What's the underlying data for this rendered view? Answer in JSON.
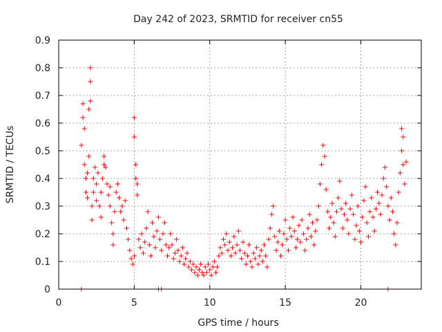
{
  "chart_data": {
    "type": "scatter",
    "title": "Day 242 of 2023, SRMTID for receiver cn55",
    "xlabel": "GPS time / hours",
    "ylabel": "SRMTID / TECUs",
    "xlim": [
      0,
      24
    ],
    "ylim": [
      0,
      0.9
    ],
    "xticks": [
      0,
      5,
      10,
      15,
      20
    ],
    "yticks": [
      0,
      0.1,
      0.2,
      0.3,
      0.4,
      0.5,
      0.6,
      0.7,
      0.8,
      0.9
    ],
    "grid": true,
    "marker": "+",
    "color": "#ff0000",
    "series": [
      {
        "name": "SRMTID",
        "points": [
          [
            1.5,
            0.52
          ],
          [
            1.6,
            0.62
          ],
          [
            1.6,
            0.67
          ],
          [
            1.7,
            0.58
          ],
          [
            1.7,
            0.45
          ],
          [
            1.8,
            0.4
          ],
          [
            1.8,
            0.35
          ],
          [
            1.9,
            0.33
          ],
          [
            1.9,
            0.42
          ],
          [
            2.0,
            0.48
          ],
          [
            2.0,
            0.65
          ],
          [
            2.1,
            0.8
          ],
          [
            2.1,
            0.75
          ],
          [
            2.1,
            0.68
          ],
          [
            2.2,
            0.3
          ],
          [
            2.2,
            0.25
          ],
          [
            2.3,
            0.35
          ],
          [
            2.3,
            0.4
          ],
          [
            2.4,
            0.44
          ],
          [
            2.5,
            0.38
          ],
          [
            2.5,
            0.32
          ],
          [
            2.6,
            0.42
          ],
          [
            2.7,
            0.3
          ],
          [
            2.8,
            0.26
          ],
          [
            2.8,
            0.35
          ],
          [
            2.9,
            0.4
          ],
          [
            3.0,
            0.45
          ],
          [
            3.0,
            0.48
          ],
          [
            3.1,
            0.44
          ],
          [
            3.2,
            0.38
          ],
          [
            3.3,
            0.34
          ],
          [
            3.4,
            0.3
          ],
          [
            3.4,
            0.37
          ],
          [
            3.5,
            0.24
          ],
          [
            3.6,
            0.2
          ],
          [
            3.6,
            0.16
          ],
          [
            3.7,
            0.28
          ],
          [
            3.8,
            0.35
          ],
          [
            3.9,
            0.38
          ],
          [
            4.0,
            0.33
          ],
          [
            4.1,
            0.28
          ],
          [
            4.2,
            0.3
          ],
          [
            4.3,
            0.25
          ],
          [
            4.4,
            0.32
          ],
          [
            4.5,
            0.22
          ],
          [
            4.6,
            0.18
          ],
          [
            4.7,
            0.14
          ],
          [
            4.8,
            0.11
          ],
          [
            4.9,
            0.09
          ],
          [
            5.0,
            0.12
          ],
          [
            5.0,
            0.62
          ],
          [
            5.0,
            0.55
          ],
          [
            5.1,
            0.45
          ],
          [
            5.1,
            0.4
          ],
          [
            5.2,
            0.38
          ],
          [
            5.2,
            0.34
          ],
          [
            5.3,
            0.18
          ],
          [
            5.4,
            0.15
          ],
          [
            5.5,
            0.2
          ],
          [
            5.6,
            0.13
          ],
          [
            5.7,
            0.17
          ],
          [
            5.8,
            0.22
          ],
          [
            5.9,
            0.28
          ],
          [
            6.0,
            0.16
          ],
          [
            6.1,
            0.12
          ],
          [
            6.2,
            0.24
          ],
          [
            6.3,
            0.19
          ],
          [
            6.4,
            0.15
          ],
          [
            6.5,
            0.21
          ],
          [
            6.6,
            0.26
          ],
          [
            6.7,
            0.18
          ],
          [
            6.8,
            0.14
          ],
          [
            6.9,
            0.2
          ],
          [
            7.0,
            0.24
          ],
          [
            7.1,
            0.16
          ],
          [
            7.2,
            0.12
          ],
          [
            7.3,
            0.15
          ],
          [
            7.4,
            0.2
          ],
          [
            7.5,
            0.16
          ],
          [
            7.6,
            0.11
          ],
          [
            7.7,
            0.13
          ],
          [
            7.8,
            0.18
          ],
          [
            7.9,
            0.14
          ],
          [
            8.0,
            0.1
          ],
          [
            8.1,
            0.12
          ],
          [
            8.2,
            0.15
          ],
          [
            8.3,
            0.09
          ],
          [
            8.4,
            0.11
          ],
          [
            8.5,
            0.13
          ],
          [
            8.6,
            0.08
          ],
          [
            8.7,
            0.1
          ],
          [
            8.8,
            0.07
          ],
          [
            8.9,
            0.09
          ],
          [
            9.0,
            0.06
          ],
          [
            9.1,
            0.08
          ],
          [
            9.2,
            0.05
          ],
          [
            9.3,
            0.07
          ],
          [
            9.4,
            0.09
          ],
          [
            9.5,
            0.06
          ],
          [
            9.6,
            0.05
          ],
          [
            9.7,
            0.08
          ],
          [
            9.8,
            0.06
          ],
          [
            9.9,
            0.09
          ],
          [
            10.0,
            0.07
          ],
          [
            10.1,
            0.05
          ],
          [
            10.2,
            0.08
          ],
          [
            10.3,
            0.1
          ],
          [
            10.4,
            0.06
          ],
          [
            10.5,
            0.08
          ],
          [
            10.6,
            0.12
          ],
          [
            10.7,
            0.15
          ],
          [
            10.8,
            0.13
          ],
          [
            10.9,
            0.18
          ],
          [
            11.0,
            0.16
          ],
          [
            11.1,
            0.2
          ],
          [
            11.2,
            0.14
          ],
          [
            11.3,
            0.17
          ],
          [
            11.4,
            0.12
          ],
          [
            11.5,
            0.15
          ],
          [
            11.6,
            0.19
          ],
          [
            11.7,
            0.13
          ],
          [
            11.8,
            0.16
          ],
          [
            11.9,
            0.21
          ],
          [
            12.0,
            0.14
          ],
          [
            12.1,
            0.11
          ],
          [
            12.2,
            0.17
          ],
          [
            12.3,
            0.13
          ],
          [
            12.4,
            0.09
          ],
          [
            12.5,
            0.12
          ],
          [
            12.6,
            0.16
          ],
          [
            12.7,
            0.1
          ],
          [
            12.8,
            0.08
          ],
          [
            12.9,
            0.13
          ],
          [
            13.0,
            0.11
          ],
          [
            13.1,
            0.15
          ],
          [
            13.2,
            0.09
          ],
          [
            13.3,
            0.12
          ],
          [
            13.4,
            0.14
          ],
          [
            13.5,
            0.1
          ],
          [
            13.6,
            0.16
          ],
          [
            13.7,
            0.12
          ],
          [
            13.8,
            0.08
          ],
          [
            13.9,
            0.18
          ],
          [
            14.0,
            0.22
          ],
          [
            14.1,
            0.27
          ],
          [
            14.2,
            0.3
          ],
          [
            14.3,
            0.19
          ],
          [
            14.4,
            0.14
          ],
          [
            14.5,
            0.17
          ],
          [
            14.6,
            0.21
          ],
          [
            14.7,
            0.12
          ],
          [
            14.8,
            0.16
          ],
          [
            14.9,
            0.2
          ],
          [
            15.0,
            0.25
          ],
          [
            15.1,
            0.18
          ],
          [
            15.2,
            0.14
          ],
          [
            15.3,
            0.22
          ],
          [
            15.4,
            0.19
          ],
          [
            15.5,
            0.26
          ],
          [
            15.6,
            0.21
          ],
          [
            15.7,
            0.15
          ],
          [
            15.8,
            0.18
          ],
          [
            15.9,
            0.23
          ],
          [
            16.0,
            0.17
          ],
          [
            16.1,
            0.25
          ],
          [
            16.2,
            0.2
          ],
          [
            16.3,
            0.14
          ],
          [
            16.4,
            0.18
          ],
          [
            16.5,
            0.22
          ],
          [
            16.6,
            0.27
          ],
          [
            16.7,
            0.19
          ],
          [
            16.8,
            0.24
          ],
          [
            16.9,
            0.16
          ],
          [
            17.0,
            0.21
          ],
          [
            17.1,
            0.25
          ],
          [
            17.2,
            0.3
          ],
          [
            17.3,
            0.38
          ],
          [
            17.4,
            0.45
          ],
          [
            17.5,
            0.52
          ],
          [
            17.6,
            0.48
          ],
          [
            17.7,
            0.36
          ],
          [
            17.8,
            0.28
          ],
          [
            17.9,
            0.22
          ],
          [
            18.0,
            0.26
          ],
          [
            18.1,
            0.31
          ],
          [
            18.2,
            0.24
          ],
          [
            18.3,
            0.19
          ],
          [
            18.4,
            0.28
          ],
          [
            18.5,
            0.33
          ],
          [
            18.6,
            0.39
          ],
          [
            18.7,
            0.29
          ],
          [
            18.8,
            0.22
          ],
          [
            18.9,
            0.27
          ],
          [
            19.0,
            0.31
          ],
          [
            19.1,
            0.25
          ],
          [
            19.2,
            0.2
          ],
          [
            19.3,
            0.29
          ],
          [
            19.4,
            0.34
          ],
          [
            19.5,
            0.27
          ],
          [
            19.6,
            0.18
          ],
          [
            19.7,
            0.23
          ],
          [
            19.8,
            0.3
          ],
          [
            19.9,
            0.21
          ],
          [
            20.0,
            0.17
          ],
          [
            20.1,
            0.26
          ],
          [
            20.2,
            0.32
          ],
          [
            20.3,
            0.37
          ],
          [
            20.4,
            0.24
          ],
          [
            20.5,
            0.19
          ],
          [
            20.6,
            0.28
          ],
          [
            20.7,
            0.33
          ],
          [
            20.8,
            0.26
          ],
          [
            20.9,
            0.21
          ],
          [
            21.0,
            0.29
          ],
          [
            21.1,
            0.35
          ],
          [
            21.2,
            0.31
          ],
          [
            21.3,
            0.27
          ],
          [
            21.4,
            0.34
          ],
          [
            21.5,
            0.4
          ],
          [
            21.6,
            0.44
          ],
          [
            21.7,
            0.37
          ],
          [
            21.8,
            0.3
          ],
          [
            21.9,
            0.25
          ],
          [
            22.0,
            0.33
          ],
          [
            22.1,
            0.28
          ],
          [
            22.2,
            0.2
          ],
          [
            22.3,
            0.16
          ],
          [
            22.4,
            0.24
          ],
          [
            22.5,
            0.35
          ],
          [
            22.6,
            0.42
          ],
          [
            22.7,
            0.5
          ],
          [
            22.7,
            0.58
          ],
          [
            22.8,
            0.55
          ],
          [
            22.8,
            0.45
          ],
          [
            22.9,
            0.38
          ],
          [
            23.0,
            0.46
          ],
          [
            1.5,
            0.0
          ],
          [
            6.6,
            0.0
          ],
          [
            6.8,
            0.0
          ],
          [
            21.8,
            0.0
          ]
        ]
      }
    ]
  }
}
